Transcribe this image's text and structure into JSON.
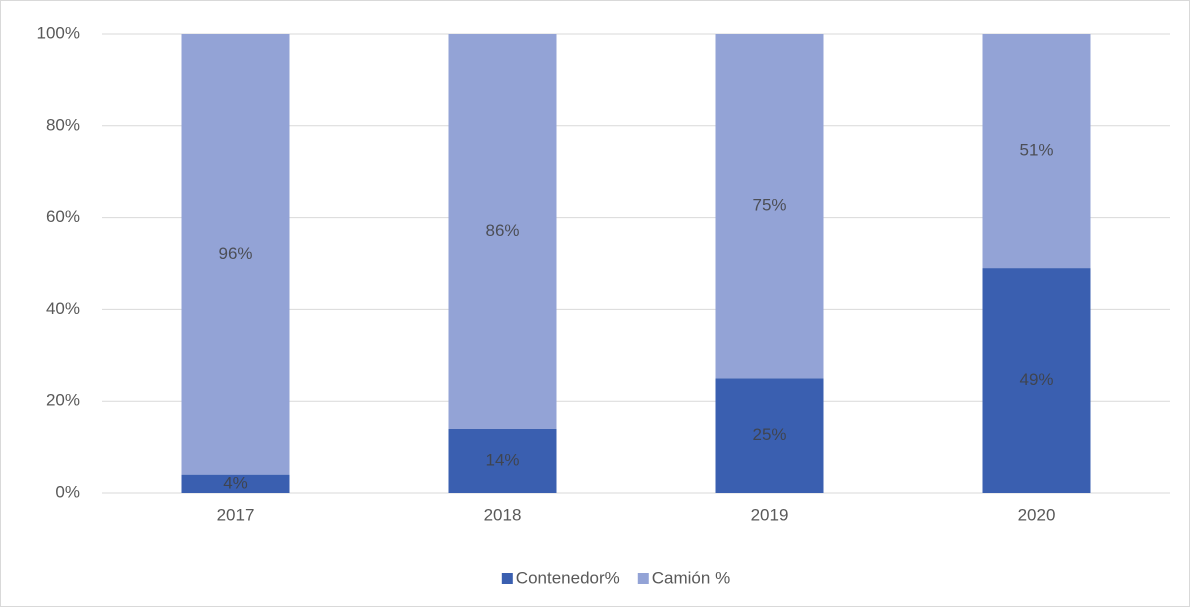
{
  "chart_data": {
    "type": "stacked_bar",
    "categories": [
      "2017",
      "2018",
      "2019",
      "2020"
    ],
    "series": [
      {
        "name": "Contenedor%",
        "color": "#3a5fb0",
        "values": [
          4,
          14,
          25,
          49
        ],
        "value_labels": [
          "4%",
          "14%",
          "25%",
          "49%"
        ]
      },
      {
        "name": "Camión %",
        "color": "#93a3d6",
        "values": [
          96,
          86,
          75,
          51
        ],
        "value_labels": [
          "96%",
          "86%",
          "75%",
          "51%"
        ]
      }
    ],
    "ylim": [
      0,
      100
    ],
    "yticks": [
      {
        "value": 0,
        "label": "0%"
      },
      {
        "value": 20,
        "label": "20%"
      },
      {
        "value": 40,
        "label": "40%"
      },
      {
        "value": 60,
        "label": "60%"
      },
      {
        "value": 80,
        "label": "80%"
      },
      {
        "value": 100,
        "label": "100%"
      }
    ],
    "grid": true,
    "legend": "bottom"
  }
}
